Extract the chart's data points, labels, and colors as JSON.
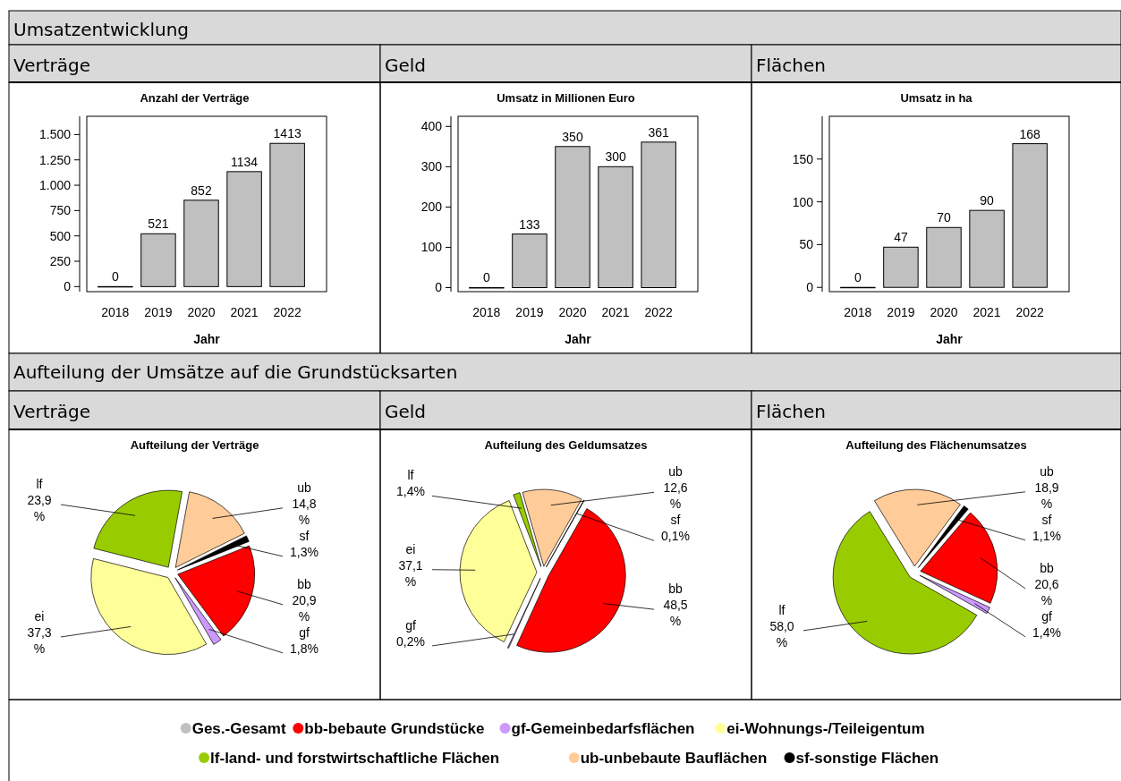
{
  "chart_data": [
    {
      "type": "bar",
      "title": "Verträge",
      "subtitle": "Anzahl der Verträge",
      "annotations": [
        "Umsatzentwicklung"
      ],
      "xlabel": "Jahr",
      "categories": [
        "2018",
        "2019",
        "2020",
        "2021",
        "2022"
      ],
      "values": [
        0,
        521,
        852,
        1134,
        1413
      ],
      "color": "#c0c0c0",
      "data_labels": true,
      "ylim": [
        -50,
        1680
      ],
      "yticks": [
        0,
        {
          "value": 250,
          "label": "250"
        },
        {
          "value": 500,
          "label": "500"
        },
        {
          "value": 750,
          "label": "750"
        },
        {
          "value": 1000,
          "label": "1.000"
        },
        {
          "value": 1250,
          "label": "1.250"
        },
        {
          "value": 1500,
          "label": "1.500"
        }
      ]
    },
    {
      "type": "bar",
      "title": "Geld",
      "subtitle": "Umsatz in Millionen Euro",
      "xlabel": "Jahr",
      "categories": [
        "2018",
        "2019",
        "2020",
        "2021",
        "2022"
      ],
      "values": [
        0,
        133,
        350,
        300,
        361
      ],
      "color": "#c0c0c0",
      "data_labels": true,
      "ylim": [
        -10,
        425
      ],
      "yticks": [
        0,
        100,
        200,
        300,
        400
      ]
    },
    {
      "type": "bar",
      "title": "Flächen",
      "subtitle": "Umsatz in ha",
      "xlabel": "Jahr",
      "categories": [
        "2018",
        "2019",
        "2020",
        "2021",
        "2022"
      ],
      "values": [
        0,
        47,
        70,
        90,
        168
      ],
      "color": "#c0c0c0",
      "data_labels": true,
      "ylim": [
        -5,
        200
      ],
      "yticks": [
        0,
        50,
        100,
        150
      ]
    },
    {
      "type": "pie",
      "title": "Verträge",
      "subtitle": "Aufteilung der Verträge",
      "annotations": [
        "Aufteilung der Umsätze auf die Grundstücksarten"
      ],
      "categories": [
        "ub",
        "sf",
        "bb",
        "gf",
        "ei",
        "lf"
      ],
      "values": [
        14.8,
        1.3,
        20.9,
        1.8,
        37.3,
        23.9
      ],
      "value_labels": [
        "14,8 %",
        "1,3%",
        "20,9 %",
        "1,8%",
        "37,3 %",
        "23,9 %"
      ],
      "colors": [
        "#ffcc99",
        "#000000",
        "#ff0000",
        "#cc99ff",
        "#ffff99",
        "#99cc00"
      ]
    },
    {
      "type": "pie",
      "title": "Geld",
      "subtitle": "Aufteilung des Geldumsatzes",
      "categories": [
        "ub",
        "sf",
        "bb",
        "gf",
        "ei",
        "lf"
      ],
      "values": [
        12.6,
        0.1,
        48.5,
        0.2,
        37.1,
        1.4
      ],
      "value_labels": [
        "12,6 %",
        "0,1%",
        "48,5 %",
        "0,2%",
        "37,1 %",
        "1,4%"
      ],
      "colors": [
        "#ffcc99",
        "#000000",
        "#ff0000",
        "#cc99ff",
        "#ffff99",
        "#99cc00"
      ]
    },
    {
      "type": "pie",
      "title": "Flächen",
      "subtitle": "Aufteilung des Flächenumsatzes",
      "categories": [
        "ub",
        "sf",
        "bb",
        "gf",
        "lf"
      ],
      "values": [
        18.9,
        1.1,
        20.6,
        1.4,
        58.0
      ],
      "value_labels": [
        "18,9 %",
        "1,1%",
        "20,6 %",
        "1,4%",
        "58,0 %"
      ],
      "colors": [
        "#ffcc99",
        "#000000",
        "#ff0000",
        "#cc99ff",
        "#99cc00"
      ]
    },
    {
      "type": "other",
      "categories": [
        "Ges.-Gesamt",
        "bb-bebaute Grundstücke",
        "gf-Gemeinbedarfsflächen",
        "ei-Wohnungs-/Teileigentum",
        "lf-land- und forstwirtschaftliche Flächen",
        "ub-unbebaute Bauflächen",
        "sf-sonstige Flächen"
      ],
      "colors": [
        "#c0c0c0",
        "#ff0000",
        "#cc99ff",
        "#ffff99",
        "#99cc00",
        "#ffcc99",
        "#000000"
      ]
    }
  ]
}
